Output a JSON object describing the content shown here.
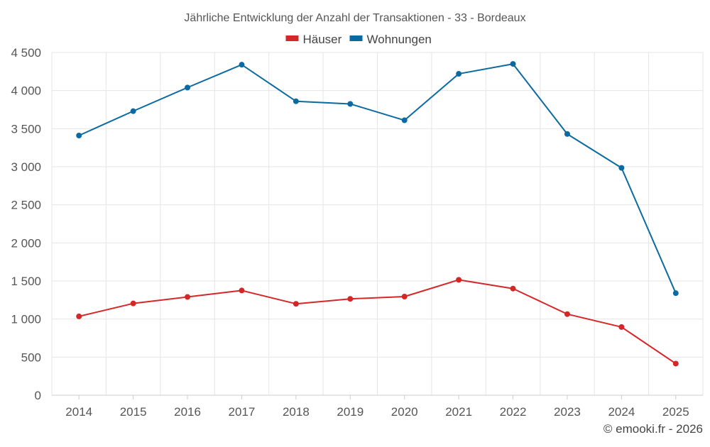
{
  "chart_data": {
    "type": "line",
    "title": "Jährliche Entwicklung der Anzahl der Transaktionen - 33 - Bordeaux",
    "categories": [
      "2014",
      "2015",
      "2016",
      "2017",
      "2018",
      "2019",
      "2020",
      "2021",
      "2022",
      "2023",
      "2024",
      "2025"
    ],
    "series": [
      {
        "name": "Häuser",
        "color": "#d62728",
        "values": [
          1035,
          1205,
          1290,
          1375,
          1200,
          1265,
          1295,
          1515,
          1400,
          1065,
          895,
          415
        ]
      },
      {
        "name": "Wohnungen",
        "color": "#0a6aa1",
        "values": [
          3410,
          3730,
          4040,
          4340,
          3860,
          3825,
          3610,
          4220,
          4350,
          3430,
          2985,
          1340
        ]
      }
    ],
    "ylim": [
      0,
      4500
    ],
    "yticks": [
      0,
      500,
      1000,
      1500,
      2000,
      2500,
      3000,
      3500,
      4000,
      4500
    ],
    "ytick_labels": [
      "0",
      "500",
      "1 000",
      "1 500",
      "2 000",
      "2 500",
      "3 000",
      "3 500",
      "4 000",
      "4 500"
    ],
    "xlabel": "",
    "ylabel": "",
    "legend_position": "top-center",
    "grid": true
  },
  "credit": "© emooki.fr - 2026"
}
